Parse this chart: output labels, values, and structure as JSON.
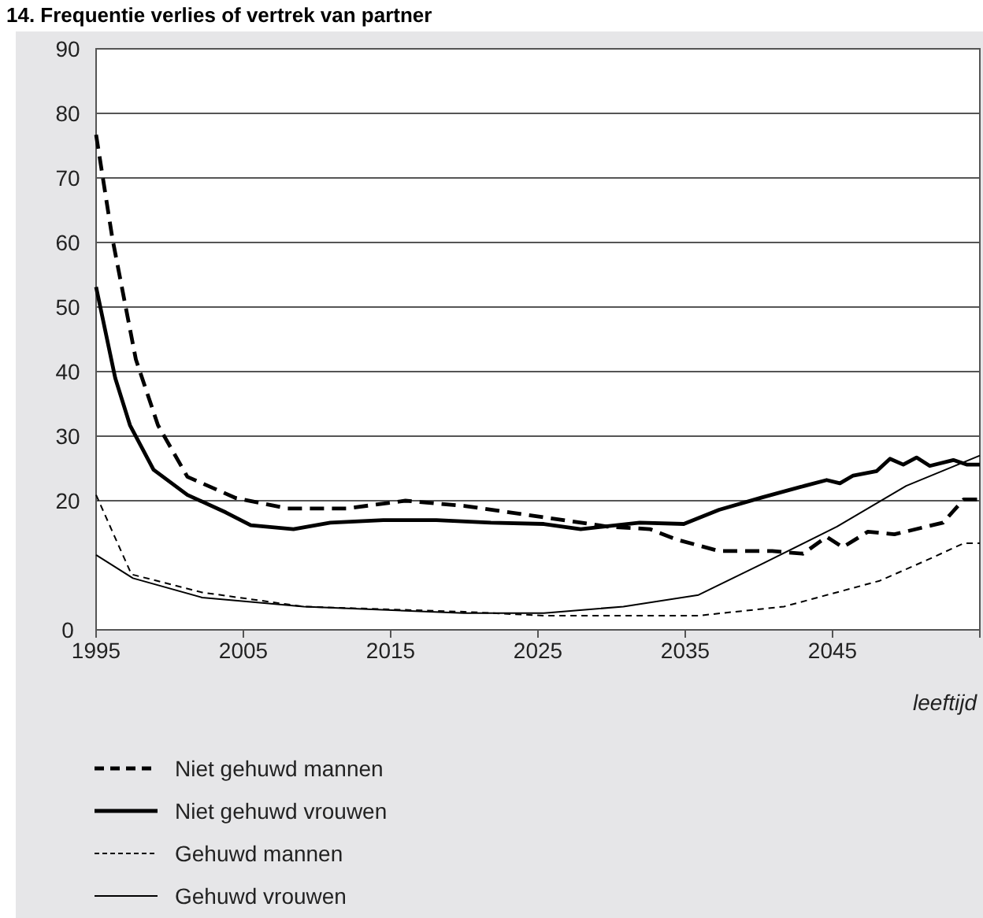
{
  "chart_data": {
    "type": "line",
    "title": "14. Frequentie verlies of vertrek van partner",
    "xlabel": "leeftijd",
    "xlim": [
      1995,
      2055
    ],
    "xticks": [
      1995,
      2005,
      2015,
      2025,
      2035,
      2045,
      {
        "value": 2055,
        "label": null
      }
    ],
    "ylim": [
      0,
      90
    ],
    "yticks": [
      0,
      20,
      30,
      40,
      50,
      60,
      70,
      80,
      90
    ],
    "grid": "y",
    "legend": "bottom",
    "marker": "none",
    "series": [
      {
        "name": "Niet gehuwd mannen",
        "color": "#000000",
        "line_style": "dashed",
        "x": [
          1995,
          1996.1,
          1997.7,
          1999.2,
          2001.2,
          2004.5,
          2008,
          2012,
          2016,
          2020,
          2024.3,
          2029.7,
          2032.6,
          2034.4,
          2037.3,
          2040.9,
          2043,
          2044.6,
          2045.7,
          2047.4,
          2049.2,
          2052.5,
          2053.9,
          2055
        ],
        "values": [
          76.7,
          60.7,
          41.9,
          31.7,
          23.7,
          20.4,
          18.8,
          18.8,
          20,
          19.2,
          17.8,
          16,
          15.6,
          14,
          12.2,
          12.2,
          11.8,
          14.4,
          12.8,
          15.2,
          14.8,
          16.6,
          20.2,
          20.2
        ]
      },
      {
        "name": "Niet gehuwd vrouwen",
        "color": "#000000",
        "line_style": "solid",
        "x": [
          1995,
          1996.3,
          1997.3,
          1998.9,
          2001.2,
          2003.8,
          2005.5,
          2008.4,
          2010.9,
          2014.5,
          2018.1,
          2021.8,
          2025.4,
          2027.9,
          2031.9,
          2034.9,
          2037.3,
          2040.2,
          2043.1,
          2044.6,
          2045.5,
          2046.4,
          2048,
          2048.9,
          2049.8,
          2050.7,
          2051.6,
          2053.2,
          2054.1,
          2055
        ],
        "values": [
          53.1,
          39,
          31.7,
          24.8,
          20.9,
          18.2,
          16.2,
          15.6,
          16.6,
          17,
          17,
          16.6,
          16.4,
          15.6,
          16.6,
          16.4,
          18.6,
          20.5,
          22.3,
          23.2,
          22.7,
          23.9,
          24.6,
          26.5,
          25.6,
          26.7,
          25.4,
          26.3,
          25.6,
          25.6
        ]
      },
      {
        "name": "Gehuwd mannen",
        "color": "#000000",
        "line_style": "dashed",
        "x": [
          1995,
          1997.4,
          2002.2,
          2009.1,
          2020,
          2025.4,
          2035.9,
          2041.7,
          2048.2,
          2051.4,
          2053.9,
          2055
        ],
        "values": [
          20.9,
          8.6,
          5.8,
          3.6,
          2.8,
          2.2,
          2.2,
          3.6,
          7.6,
          10.8,
          13.4,
          13.4
        ]
      },
      {
        "name": "Gehuwd vrouwen",
        "color": "#000000",
        "line_style": "solid",
        "x": [
          1995,
          1997.5,
          2002.2,
          2009.1,
          2020,
          2025.4,
          2030.8,
          2035.9,
          2040.2,
          2045.3,
          2050,
          2055
        ],
        "values": [
          11.6,
          8,
          5,
          3.6,
          2.6,
          2.6,
          3.6,
          5.4,
          10.2,
          16,
          22.3,
          27
        ]
      }
    ]
  }
}
